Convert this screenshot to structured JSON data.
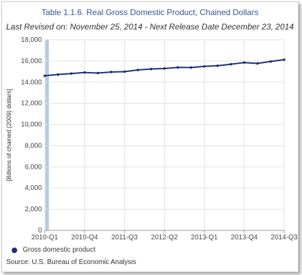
{
  "chart_data": {
    "type": "line",
    "title": "Table 1.1.6. Real Gross Domestic Product, Chained Dollars",
    "subtitle": "Last Revised on: November 25, 2014 - Next Release Date December 23, 2014",
    "ylabel": "[Billions of chained (2009) dollars]",
    "xlabel": "",
    "ylim": [
      0,
      18000
    ],
    "yticks": [
      0,
      2000,
      4000,
      6000,
      8000,
      10000,
      12000,
      14000,
      16000,
      18000
    ],
    "ytick_labels": [
      "0",
      "2,000",
      "4,000",
      "6,000",
      "8,000",
      "10,000",
      "12,000",
      "14,000",
      "16,000",
      "18,000"
    ],
    "x": [
      "2010-Q1",
      "2010-Q2",
      "2010-Q3",
      "2010-Q4",
      "2011-Q1",
      "2011-Q2",
      "2011-Q3",
      "2011-Q4",
      "2012-Q1",
      "2012-Q2",
      "2012-Q3",
      "2012-Q4",
      "2013-Q1",
      "2013-Q2",
      "2013-Q3",
      "2013-Q4",
      "2014-Q1",
      "2014-Q2",
      "2014-Q3"
    ],
    "xtick_labels": [
      "2010-Q1",
      "2010-Q4",
      "2011-Q3",
      "2012-Q2",
      "2013-Q1",
      "2013-Q4",
      "2014-Q3"
    ],
    "series": [
      {
        "name": "Gross domestic product",
        "color": "#1b2f7a",
        "values": [
          14600,
          14720,
          14810,
          14910,
          14860,
          14960,
          14990,
          15150,
          15240,
          15290,
          15390,
          15380,
          15490,
          15550,
          15690,
          15850,
          15770,
          15950,
          16120
        ]
      }
    ],
    "grid": true,
    "legend_position": "bottom-left",
    "highlight_band_color": "#b7c9e2"
  },
  "source_text": "Source: U.S. Bureau of Economic  Analysis"
}
